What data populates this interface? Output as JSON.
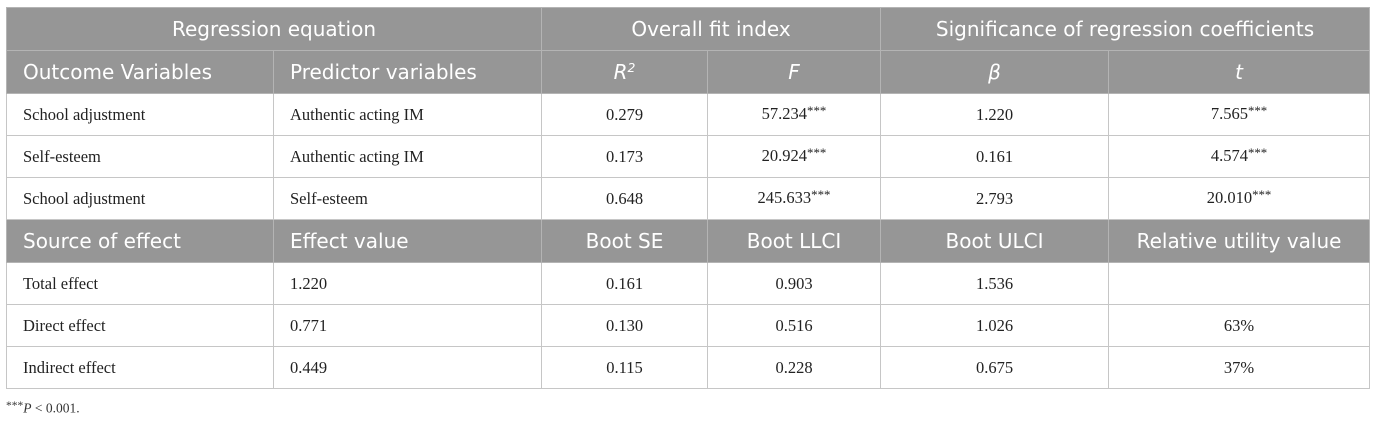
{
  "header_row_1": {
    "regression_equation": "Regression equation",
    "overall_fit_index": "Overall fit index",
    "significance": "Significance of regression coefficients"
  },
  "header_row_2": {
    "outcome": "Outcome Variables",
    "predictor": "Predictor variables",
    "r_letter": "R",
    "r_sup": "2",
    "f": "F",
    "beta": "β",
    "t": "t"
  },
  "regression_rows": [
    {
      "outcome": "School adjustment",
      "predictor": "Authentic acting IM",
      "r2": "0.279",
      "f": "57.234",
      "f_sig": "***",
      "beta": "1.220",
      "t": "7.565",
      "t_sig": "***"
    },
    {
      "outcome": "Self-esteem",
      "predictor": "Authentic acting IM",
      "r2": "0.173",
      "f": "20.924",
      "f_sig": "***",
      "beta": "0.161",
      "t": "4.574",
      "t_sig": "***"
    },
    {
      "outcome": "School adjustment",
      "predictor": "Self-esteem",
      "r2": "0.648",
      "f": "245.633",
      "f_sig": "***",
      "beta": "2.793",
      "t": "20.010",
      "t_sig": "***"
    }
  ],
  "header_row_3": {
    "source": "Source of effect",
    "effect_value": "Effect value",
    "boot_se": "Boot SE",
    "boot_llci": "Boot LLCI",
    "boot_ulci": "Boot ULCI",
    "relative_utility": "Relative utility value"
  },
  "effect_rows": [
    {
      "source": "Total effect",
      "effect": "1.220",
      "se": "0.161",
      "llci": "0.903",
      "ulci": "1.536",
      "relative": ""
    },
    {
      "source": "Direct effect",
      "effect": "0.771",
      "se": "0.130",
      "llci": "0.516",
      "ulci": "1.026",
      "relative": "63%"
    },
    {
      "source": "Indirect effect",
      "effect": "0.449",
      "se": "0.115",
      "llci": "0.228",
      "ulci": "0.675",
      "relative": "37%"
    }
  ],
  "footnote": {
    "stars": "***",
    "p": "P",
    "rest": " < 0.001."
  },
  "colors": {
    "header_bg": "#969696",
    "header_text": "#ffffff",
    "border": "#c6c6c6"
  }
}
